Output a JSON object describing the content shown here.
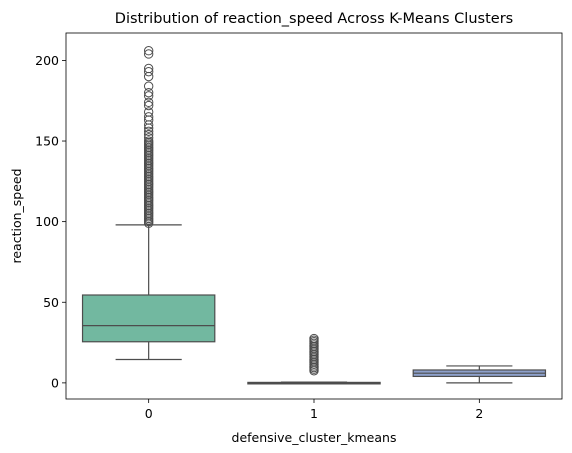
{
  "chart_data": {
    "type": "box",
    "title": "Distribution of reaction_speed Across K-Means Clusters",
    "xlabel": "defensive_cluster_kmeans",
    "ylabel": "reaction_speed",
    "categories": [
      "0",
      "1",
      "2"
    ],
    "ylim": [
      -10,
      217
    ],
    "yticks": [
      0,
      50,
      100,
      150,
      200
    ],
    "grid": false,
    "boxes": [
      {
        "category": "0",
        "color": "#72b8a0",
        "whisker_low": 14.5,
        "q1": 25.5,
        "median": 35.5,
        "q3": 54.5,
        "whisker_high": 98,
        "outliers": [
          99,
          100,
          101,
          102,
          103,
          104,
          105,
          106,
          107,
          108,
          109,
          110,
          111,
          112,
          113,
          114,
          115,
          116,
          117,
          118,
          119,
          120,
          121,
          122,
          123,
          124,
          125,
          126,
          127,
          128,
          129,
          130,
          131,
          132,
          133,
          134,
          135,
          136,
          137,
          138,
          139,
          140,
          141,
          142,
          143,
          144,
          145,
          146,
          147,
          148,
          149,
          150,
          152,
          154,
          156,
          158,
          160,
          163,
          165,
          168,
          172,
          174,
          178,
          180,
          184,
          190,
          193,
          195,
          204,
          206
        ]
      },
      {
        "category": "1",
        "color": "#f1a27a",
        "whisker_low": 0,
        "q1": 0,
        "median": 0,
        "q3": 0.3,
        "whisker_high": 0.5,
        "outliers": [
          7.5,
          8.5,
          9.5,
          10.5,
          11.5,
          12.5,
          13.5,
          14.5,
          15.5,
          16.5,
          17.5,
          18.5,
          19.5,
          20.5,
          21.5,
          22.5,
          23.5,
          24.5,
          25.5,
          26.5,
          27.5
        ]
      },
      {
        "category": "2",
        "color": "#8da0cb",
        "whisker_low": 0,
        "q1": 4,
        "median": 6,
        "q3": 8,
        "whisker_high": 10.5,
        "outliers": []
      }
    ]
  }
}
